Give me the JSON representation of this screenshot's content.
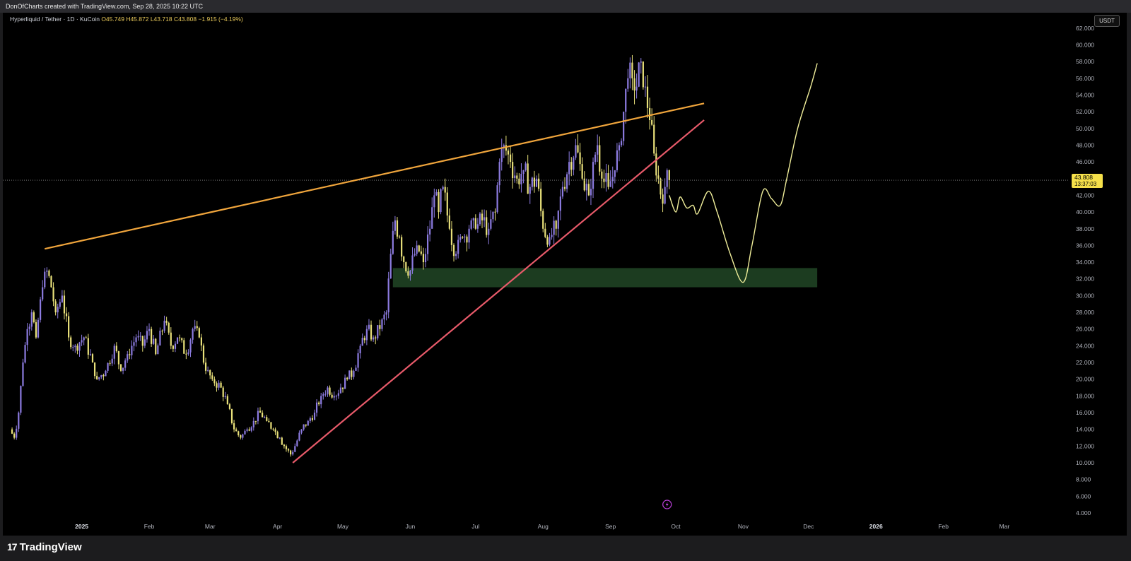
{
  "header": {
    "credit": "DonOfCharts created with TradingView.com, Sep 28, 2025 10:22 UTC"
  },
  "legend": {
    "symbol": "Hyperliquid / Tether · 1D · KuCoin",
    "open": "O45.749",
    "high": "H45.872",
    "low": "L43.718",
    "close": "C43.808",
    "change": "−1.915 (−4.19%)"
  },
  "currency_button": "USDT",
  "price_tag": {
    "price": "43.808",
    "countdown": "13:37:03"
  },
  "footer": {
    "brand": "TradingView",
    "logo_mark": "17"
  },
  "colors": {
    "up_candle": "#8c7be0",
    "down_candle": "#e8e07a",
    "upper_trendline": "#f0a53c",
    "lower_trendline": "#e85a6a",
    "support_zone": "#1e3f22",
    "projection_path": "#f0ee9a",
    "price_tag_bg": "#f5e04a"
  },
  "icons": {
    "flash": "lightning-icon",
    "logo": "tradingview-logo-icon"
  },
  "chart_data": {
    "type": "candlestick",
    "title": "Hyperliquid / Tether",
    "ylim": [
      4,
      63
    ],
    "y_ticks": [
      "4.000",
      "6.000",
      "8.000",
      "10.000",
      "12.000",
      "14.000",
      "16.000",
      "18.000",
      "20.000",
      "22.000",
      "24.000",
      "26.000",
      "28.000",
      "30.000",
      "32.000",
      "34.000",
      "36.000",
      "38.000",
      "40.000",
      "42.000",
      "44.000",
      "46.000",
      "48.000",
      "50.000",
      "52.000",
      "54.000",
      "56.000",
      "58.000",
      "60.000",
      "62.000"
    ],
    "x_ticks": [
      "2025",
      "Feb",
      "Mar",
      "Apr",
      "May",
      "Jun",
      "Jul",
      "Aug",
      "Sep",
      "Oct",
      "Nov",
      "Dec",
      "2026",
      "Feb",
      "Mar"
    ],
    "x_tick_dates": [
      "2025-01-01",
      "2025-02-01",
      "2025-03-01",
      "2025-04-01",
      "2025-05-01",
      "2025-06-01",
      "2025-07-01",
      "2025-08-01",
      "2025-09-01",
      "2025-10-01",
      "2025-11-01",
      "2025-12-01",
      "2026-01-01",
      "2026-02-01",
      "2026-03-01"
    ],
    "x_range": [
      "2024-11-29",
      "2026-03-28"
    ],
    "price_series": [
      [
        "2024-11-29",
        14
      ],
      [
        "2024-12-01",
        13
      ],
      [
        "2024-12-03",
        16
      ],
      [
        "2024-12-05",
        22
      ],
      [
        "2024-12-07",
        26
      ],
      [
        "2024-12-09",
        28
      ],
      [
        "2024-12-11",
        25
      ],
      [
        "2024-12-14",
        31
      ],
      [
        "2024-12-16",
        33
      ],
      [
        "2024-12-18",
        31
      ],
      [
        "2024-12-20",
        28
      ],
      [
        "2024-12-23",
        30
      ],
      [
        "2024-12-26",
        25
      ],
      [
        "2024-12-29",
        24
      ],
      [
        "2025-01-02",
        25
      ],
      [
        "2025-01-06",
        22
      ],
      [
        "2025-01-08",
        20
      ],
      [
        "2025-01-12",
        21
      ],
      [
        "2025-01-16",
        24
      ],
      [
        "2025-01-19",
        21
      ],
      [
        "2025-01-22",
        23
      ],
      [
        "2025-01-26",
        25
      ],
      [
        "2025-01-29",
        24
      ],
      [
        "2025-02-01",
        26
      ],
      [
        "2025-02-04",
        23
      ],
      [
        "2025-02-08",
        27
      ],
      [
        "2025-02-11",
        24
      ],
      [
        "2025-02-14",
        25
      ],
      [
        "2025-02-18",
        23
      ],
      [
        "2025-02-21",
        26
      ],
      [
        "2025-02-24",
        25
      ],
      [
        "2025-02-27",
        21
      ],
      [
        "2025-03-02",
        20
      ],
      [
        "2025-03-06",
        19
      ],
      [
        "2025-03-09",
        17
      ],
      [
        "2025-03-12",
        14
      ],
      [
        "2025-03-15",
        13
      ],
      [
        "2025-03-18",
        14
      ],
      [
        "2025-03-21",
        15
      ],
      [
        "2025-03-24",
        16
      ],
      [
        "2025-03-27",
        15
      ],
      [
        "2025-03-30",
        14
      ],
      [
        "2025-04-02",
        13
      ],
      [
        "2025-04-04",
        12
      ],
      [
        "2025-04-07",
        11
      ],
      [
        "2025-04-09",
        12
      ],
      [
        "2025-04-12",
        14
      ],
      [
        "2025-04-15",
        15
      ],
      [
        "2025-04-18",
        16
      ],
      [
        "2025-04-21",
        18
      ],
      [
        "2025-04-24",
        19
      ],
      [
        "2025-04-27",
        18
      ],
      [
        "2025-04-30",
        19
      ],
      [
        "2025-05-03",
        20
      ],
      [
        "2025-05-06",
        21
      ],
      [
        "2025-05-09",
        24
      ],
      [
        "2025-05-12",
        26
      ],
      [
        "2025-05-15",
        25
      ],
      [
        "2025-05-18",
        26
      ],
      [
        "2025-05-21",
        28
      ],
      [
        "2025-05-23",
        35
      ],
      [
        "2025-05-25",
        39
      ],
      [
        "2025-05-27",
        37
      ],
      [
        "2025-05-29",
        34
      ],
      [
        "2025-06-01",
        33
      ],
      [
        "2025-06-04",
        36
      ],
      [
        "2025-06-07",
        34
      ],
      [
        "2025-06-10",
        38
      ],
      [
        "2025-06-12",
        42
      ],
      [
        "2025-06-14",
        40
      ],
      [
        "2025-06-16",
        43
      ],
      [
        "2025-06-19",
        38
      ],
      [
        "2025-06-22",
        35
      ],
      [
        "2025-06-25",
        37
      ],
      [
        "2025-06-28",
        38
      ],
      [
        "2025-07-01",
        38
      ],
      [
        "2025-07-04",
        39
      ],
      [
        "2025-07-07",
        38
      ],
      [
        "2025-07-10",
        40
      ],
      [
        "2025-07-12",
        46
      ],
      [
        "2025-07-14",
        48
      ],
      [
        "2025-07-17",
        46
      ],
      [
        "2025-07-20",
        44
      ],
      [
        "2025-07-23",
        45
      ],
      [
        "2025-07-26",
        43
      ],
      [
        "2025-07-29",
        44
      ],
      [
        "2025-08-01",
        38
      ],
      [
        "2025-08-04",
        37
      ],
      [
        "2025-08-07",
        38
      ],
      [
        "2025-08-10",
        43
      ],
      [
        "2025-08-13",
        46
      ],
      [
        "2025-08-16",
        48
      ],
      [
        "2025-08-19",
        44
      ],
      [
        "2025-08-22",
        42
      ],
      [
        "2025-08-24",
        46
      ],
      [
        "2025-08-26",
        48
      ],
      [
        "2025-08-28",
        44
      ],
      [
        "2025-08-31",
        43
      ],
      [
        "2025-09-03",
        45
      ],
      [
        "2025-09-05",
        48
      ],
      [
        "2025-09-07",
        52
      ],
      [
        "2025-09-09",
        56
      ],
      [
        "2025-09-11",
        56
      ],
      [
        "2025-09-13",
        55
      ],
      [
        "2025-09-15",
        58
      ],
      [
        "2025-09-17",
        55
      ],
      [
        "2025-09-19",
        51
      ],
      [
        "2025-09-21",
        47
      ],
      [
        "2025-09-23",
        44
      ],
      [
        "2025-09-25",
        41
      ],
      [
        "2025-09-26",
        43
      ],
      [
        "2025-09-27",
        45
      ],
      [
        "2025-09-28",
        43.808
      ]
    ],
    "last_price": 43.808,
    "annotations": {
      "upper_trendline": [
        [
          "2024-12-15",
          35.6
        ],
        [
          "2025-10-14",
          53.0
        ]
      ],
      "lower_trendline": [
        [
          "2025-04-08",
          10.0
        ],
        [
          "2025-10-14",
          51.0
        ]
      ],
      "support_zone": {
        "from": "2025-05-24",
        "to": "2025-12-05",
        "low": 31.0,
        "high": 33.3
      },
      "projection_path": [
        [
          "2025-09-28",
          42.0
        ],
        [
          "2025-10-01",
          40.0
        ],
        [
          "2025-10-03",
          41.8
        ],
        [
          "2025-10-06",
          40.5
        ],
        [
          "2025-10-09",
          40.8
        ],
        [
          "2025-10-11",
          39.8
        ],
        [
          "2025-10-16",
          42.5
        ],
        [
          "2025-10-20",
          40.0
        ],
        [
          "2025-10-26",
          35.0
        ],
        [
          "2025-11-01",
          31.6
        ],
        [
          "2025-11-05",
          36.0
        ],
        [
          "2025-11-10",
          42.5
        ],
        [
          "2025-11-14",
          41.6
        ],
        [
          "2025-11-18",
          40.8
        ],
        [
          "2025-11-21",
          44.0
        ],
        [
          "2025-11-26",
          50.0
        ],
        [
          "2025-12-02",
          55.0
        ],
        [
          "2025-12-05",
          57.8
        ]
      ]
    }
  }
}
